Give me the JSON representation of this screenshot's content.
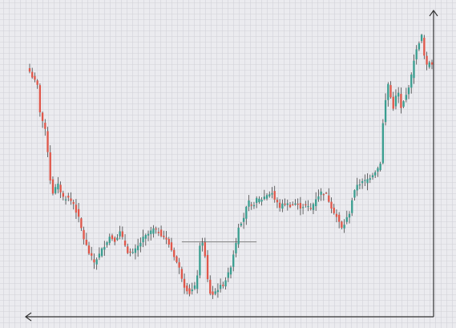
{
  "chart_data": {
    "type": "candlestick",
    "title": "",
    "xlabel": "",
    "ylabel": "",
    "grid": true,
    "legend": "none",
    "ylim": [
      0,
      100
    ],
    "colors": {
      "up": "#3a9e90",
      "down": "#e0574a",
      "wick": "#444444",
      "grid": "#d2d2d8",
      "axis": "#333333",
      "ref_line": "#8a8a8a",
      "background": "#ebebef"
    },
    "reference_line": {
      "y": 23.3,
      "x_start": 59,
      "x_end": 88
    },
    "anchors": [
      [
        0,
        82.6
      ],
      [
        3,
        77.6
      ],
      [
        4,
        68.8
      ],
      [
        6,
        62.0
      ],
      [
        7,
        55.0
      ],
      [
        8,
        45.0
      ],
      [
        9,
        40.5
      ],
      [
        10,
        42.0
      ],
      [
        11,
        43.0
      ],
      [
        13,
        38.8
      ],
      [
        15,
        38.5
      ],
      [
        17,
        36.6
      ],
      [
        19,
        31.4
      ],
      [
        21,
        24.4
      ],
      [
        23,
        19.4
      ],
      [
        25,
        16.2
      ],
      [
        27,
        18.9
      ],
      [
        29,
        22.2
      ],
      [
        31,
        25.1
      ],
      [
        33,
        24.0
      ],
      [
        35,
        26.6
      ],
      [
        36,
        24.4
      ],
      [
        38,
        20.0
      ],
      [
        40,
        19.2
      ],
      [
        42,
        21.7
      ],
      [
        44,
        24.5
      ],
      [
        46,
        26.0
      ],
      [
        48,
        27.7
      ],
      [
        50,
        26.8
      ],
      [
        52,
        25.1
      ],
      [
        54,
        22.5
      ],
      [
        56,
        18.5
      ],
      [
        58,
        14.0
      ],
      [
        60,
        8.0
      ],
      [
        62,
        5.5
      ],
      [
        64,
        7.5
      ],
      [
        65,
        12.0
      ],
      [
        66,
        21.3
      ],
      [
        67,
        23.5
      ],
      [
        68,
        18.0
      ],
      [
        69,
        10.0
      ],
      [
        70,
        5.5
      ],
      [
        71,
        5.0
      ],
      [
        73,
        7.0
      ],
      [
        75,
        8.5
      ],
      [
        77,
        12.0
      ],
      [
        78,
        15.0
      ],
      [
        80,
        23.3
      ],
      [
        81,
        28.8
      ],
      [
        83,
        31.9
      ],
      [
        84,
        35.0
      ],
      [
        85,
        37.0
      ],
      [
        86,
        35.5
      ],
      [
        88,
        37.9
      ],
      [
        90,
        38.2
      ],
      [
        92,
        39.8
      ],
      [
        94,
        40.4
      ],
      [
        95,
        38.0
      ],
      [
        97,
        35.5
      ],
      [
        99,
        36.8
      ],
      [
        101,
        36.0
      ],
      [
        103,
        36.7
      ],
      [
        105,
        35.5
      ],
      [
        107,
        36.1
      ],
      [
        109,
        34.6
      ],
      [
        111,
        38.5
      ],
      [
        113,
        40.5
      ],
      [
        115,
        39.8
      ],
      [
        117,
        35.6
      ],
      [
        119,
        32.0
      ],
      [
        121,
        28.0
      ],
      [
        122,
        29.5
      ],
      [
        124,
        33.5
      ],
      [
        125,
        38.0
      ],
      [
        127,
        43.4
      ],
      [
        129,
        44.0
      ],
      [
        131,
        45.0
      ],
      [
        133,
        47.0
      ],
      [
        135,
        49.0
      ],
      [
        136,
        51.0
      ],
      [
        137,
        64.5
      ],
      [
        138,
        72.5
      ],
      [
        139,
        78.3
      ],
      [
        140,
        73.6
      ],
      [
        141,
        70.2
      ],
      [
        142,
        73.8
      ],
      [
        143,
        75.0
      ],
      [
        144,
        69.6
      ],
      [
        145,
        72.0
      ],
      [
        146,
        74.3
      ],
      [
        148,
        81.0
      ],
      [
        149,
        86.9
      ],
      [
        151,
        93.0
      ],
      [
        152,
        95.0
      ],
      [
        153,
        88.0
      ],
      [
        154,
        84.5
      ],
      [
        155,
        86.0
      ],
      [
        156,
        85.5
      ]
    ]
  }
}
